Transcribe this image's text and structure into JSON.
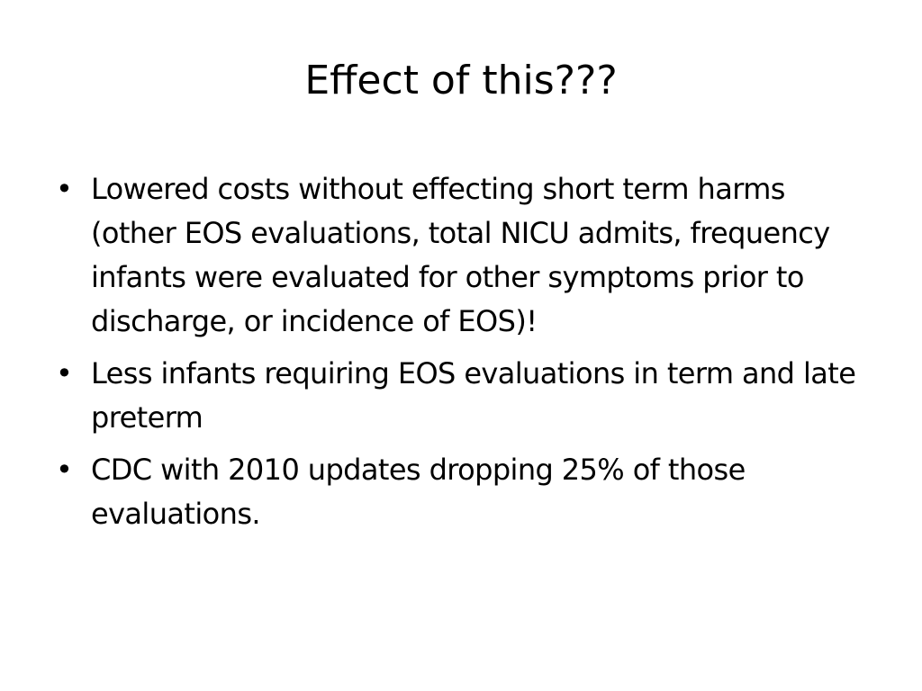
{
  "slide": {
    "title": "Effect of this???",
    "bullets": [
      "Lowered costs without effecting short term harms (other EOS evaluations, total NICU admits, frequency infants were evaluated for other symptoms prior to discharge, or incidence of EOS)!",
      "Less infants requiring EOS evaluations in term and late preterm",
      "CDC with 2010 updates dropping 25% of those evaluations."
    ]
  }
}
